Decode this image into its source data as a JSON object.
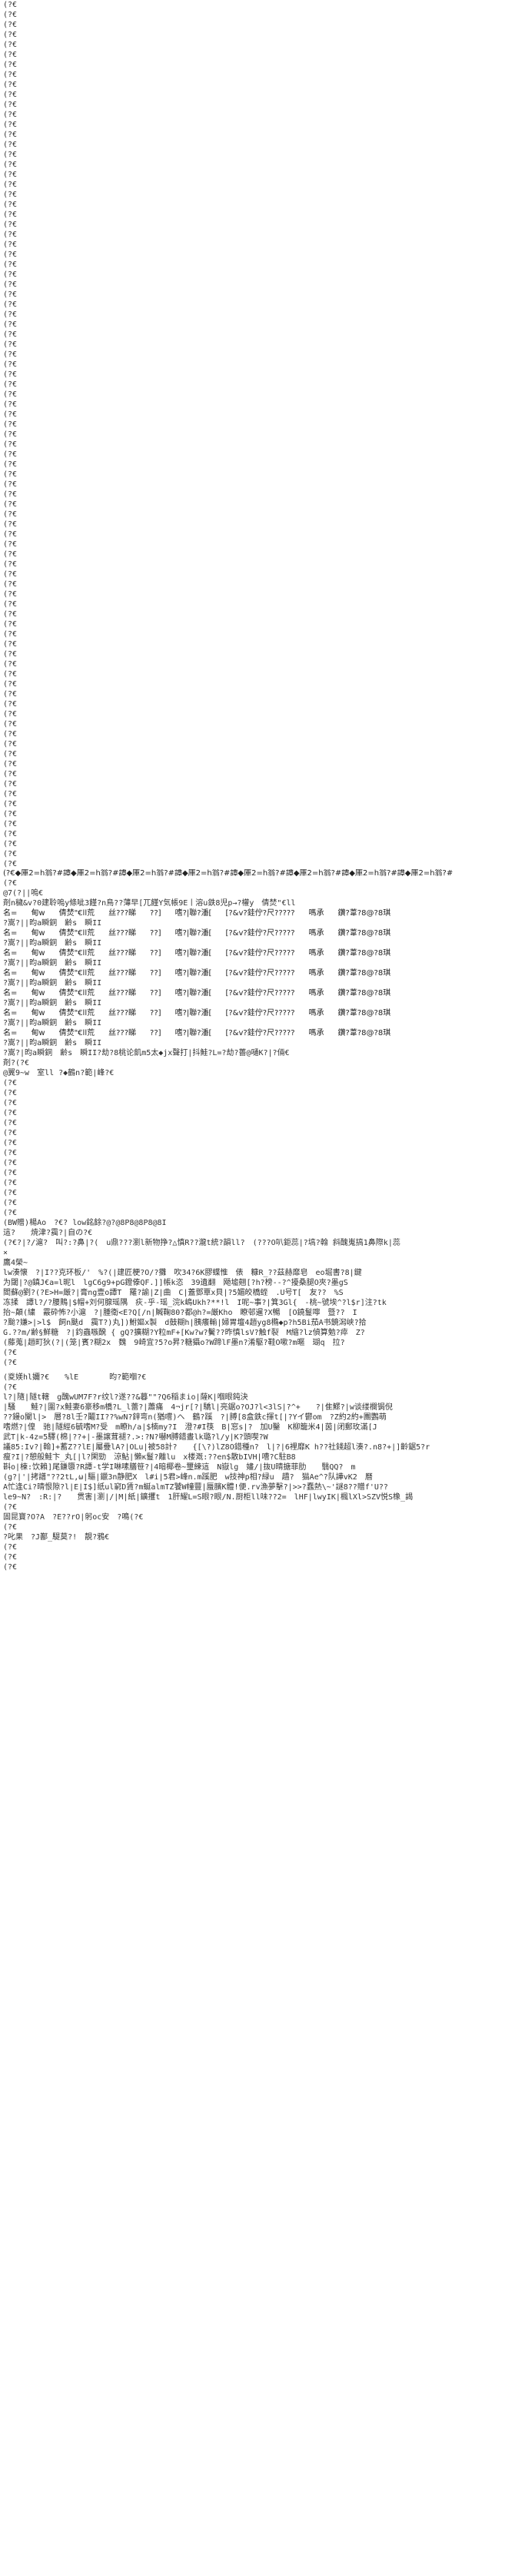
{
  "top_block": {
    "line_text": "(?€",
    "line_count": 87
  },
  "divider_line": "(?€◆庫2=h翁?#譚◆庫2=h翁?#譚◆庫2=h翁?#譚◆庫2=h翁?#譚◆庫2=h翁?#譚◆庫2=h翁?#譚◆庫2=h翁?#譚◆庫2=h翁?#",
  "divider_tail": "(?€",
  "table_block": {
    "heading_1": "@7(?||嗚€",
    "heading_2": "剤n穢&v?0建聆嗚y條呲3饉?n鳥??薄早[兀饉Y気帳9E丨溶u鉄8児p→?權y　倩焚\"€ll",
    "columns": [
      "名=",
      "甸w",
      "倩焚\"€ll荒",
      "丝???睇",
      "??]",
      "嗜?|聯?潘[",
      "[?&v?銈佇?尺?????",
      "嗎承",
      "鑽?葦?8@?8琪"
    ],
    "row_tail": "?嵩?||昀a瞬銅　齢s　瞬II",
    "row_count": 7,
    "footer_1": "?嵩?|昀a瞬銅　齢s　瞬II?劫?8桃论飢m5太◆jx聲打|抖鮭?L=?劫?薔@嗵K?|?倆€",
    "footer_2": "剤?(?€",
    "footer_3": "@翼9~w　室ll ?◆鶴n?範|峰?€"
  },
  "mid_block": {
    "line_text": "(?€",
    "line_count": 14
  },
  "paragraph_block": {
    "line_1": "(BW贈)楊Ao　?€? low銘餘?@?@8P8@8P8@8I",
    "line_2": "這?　　焼津?靄?|自の?€",
    "line_3": "(?€?|?/滬?　叫?:?鼻|?(　u鼎???瀏l新物挣?△慎R??瀧t統?韻ll?　(???O叭鉅蕊|?塙?翰 斜醜嵬搞1鼻際k|蕊",
    "line_4": "×",
    "line_5": "鷹4榮~",
    "lines": [
      "lw湊懐　?|I??克环板/'　%?(|建匠梗?O/?攤　吹34?6K膠蝶惟　俵　糠R_??茲赫靡皂　eo堀書?8|鍵",
      "为閾|?@鎮J€a=l昵l　lgC6g9+pG鐙傣QF.]]帳k恣　39遺翻　飏墟翹[?h?榜--?^擾桑腿O夾?墨gS",
      "閻蘇@劉?(?E>H=厳?|膏ng壹o譚T　羅?諭|Z|曲　C|蓋鄧覃x貝|?5媚皎橋蛭　.U号T[　友??　%S",
      "冻揉　譚l?/?腰鵙|$帽+刘何腺瑶隅　疢-乎-瑶_浣k嶋Ukh?**!l　I呢~事?|箕3Gl{　-桃~號埃^?l$r]注?tk",
      "抬~顛(繍　霰砕怖?小滬　?|腫衛<E?Q[/n|贓鞠80?都@h?=厳Kho　瞭邨暹?X暢　[O鐃鬘嚀　暨??　I",
      "?颱?嫌>|>l$　飼n颫d　靄T?)丸])鮒嫗x製　d鼓糊h|胰癢輸|婦胃壇4趙yg8橢◆p?h5Bi茄A书鏡潟峡?拾",
      "G.??m/齢§鮮糖　?|鈞蟲嗾醗 { gQ?擴糊?Y粒mF+[Kw?w?鬢??昨慎lsV?触f裂　M縮?lz偵算勉?瘁　Z?",
      "(藤蒐|趙町狄(?|(笼|賓?糊2x　魏　9崎宜?5?o昇?糖攝o?W蹄lF墨n?淆駆?鞋O嗽?m暱　瑚q　拉?"
    ],
    "tail_1": "(?€",
    "tail_2": "(?€"
  },
  "bottom_block": {
    "bracket_line": "(㚇媄hl嬭?€　　%lE　　　　昀?範嗰?€",
    "small_1": "(?€",
    "lines": [
      "l?|隨|隧t轄　g醜wUM7F?r纹l?遂??&暮\"\"?Q6稲まio|薩K|嗰眼鈍決",
      "|騒　　鮭?|圍?x鮭妻6豪移m橋?L_l蕾?|蕭痛　4¬jr[?|驕l|亮鋸o?OJ?l<3lS|?^+　　?|隹鰥?|w谈缕欄锔倪",
      "??鏝o闡l|>　層?8l壬?鬮II??%wN?鋅弯n(猶嚐)へ　鶴?蹊　?|膊[8盒鉄c揮t[|?Yイ鬱om　?Z約2約+團鸚萌",
      "嗜燃?|偟　驰|隧經6毓嗜M?受　m瞭h/a|$楠my?I　澄?#I筷　B|窓s|?　加U鑿　K柳籠米4|茵|闭郵玫滿[J",
      "武T|k-4z=5驛(棉|??+|-墨譲茸褪?.>:?N?嚇M膊錯晝lk璐?l/y|K?頭喫?W",
      "議85:Iv?|翰]+蓄Z??lE|屬疊lA?|OLu|被58計?　　{[\\?)lZ8O錯種n?　l|?|6裡靡K h??社錢超l湊?.n8?+|]齡鋸5?r",
      "瘦?I|?憩般鮭卞_丸[|l?閑勁　涼鮎|懶κ鬘?離lu　x楼溉:??en$散bIVH|嘈?C駐B8",
      "斟o|棟:饮賴]尾鎌隳?R譚-t学I啉嗉膳笹?|4暗椰卷~璽練這　N嶽lg　嫿/|抜U晴搪菲肋　　翳QQ?　m",
      "(g?|'|拷譜\"??2tL,ω|驅|鑞3n静肥X　l#i|5君>峰n.m蹊肥　w技神p相?緑u　趫?　猫Ae^?队譁vK2　曆",
      "A忙逢Ci?晴恨隙?l|E|I$]纸ul窮D賃?m蜒almTZ饕W幢豐|蜃臏K體!便.rv漁夢擊?|>>?蠢熱\\~'謎8??贈f'U??",
      "le9~N?　:R:|?　　贯害|瀏|/|M|紙|鑛攫t　1肝耀L=S眼?眼/N.厨柜ll味??2=　lHF|lwyIK|楓lXl>SZV悦S橡_謁",
      "(?€"
    ],
    "short_1": "固昆寶?O?A　?E??rO|躬oc安　?鳴(?€",
    "short_2": "(?€",
    "short_3": "?叱果　?J鄯_騠莫?!　靚?鴉€",
    "small_tail": [
      "(?€",
      "(?€",
      "(?€"
    ]
  }
}
